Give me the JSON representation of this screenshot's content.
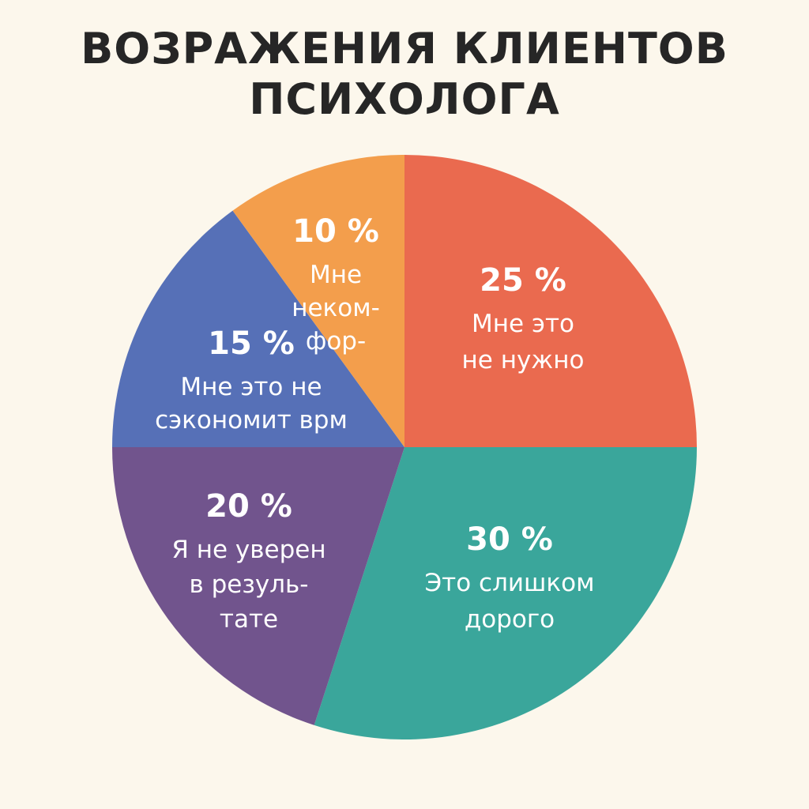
{
  "title_lines": [
    "ВОЗРАЖЕНИЯ КЛИЕНТОВ",
    "ПСИХОЛОГА"
  ],
  "chart_data": {
    "type": "pie",
    "title": "ВОЗРАЖЕНИЯ КЛИЕНТОВ ПСИХОЛОГА",
    "slices": [
      {
        "key": "s25",
        "value": 25,
        "pct_label": "25 %",
        "label_lines": [
          "Мне это",
          "не нужно"
        ],
        "color": "#ea6a4f"
      },
      {
        "key": "s30",
        "value": 30,
        "pct_label": "30 %",
        "label_lines": [
          "Это слишком",
          "дорого"
        ],
        "color": "#3aa69b"
      },
      {
        "key": "s20",
        "value": 20,
        "pct_label": "20 %",
        "label_lines": [
          "Я не уверен",
          "в резуль-",
          "тате"
        ],
        "color": "#71548d"
      },
      {
        "key": "s15",
        "value": 15,
        "pct_label": "15 %",
        "label_lines": [
          "Мне это не",
          "сэкономит врм"
        ],
        "color": "#5670b7"
      },
      {
        "key": "s10",
        "value": 10,
        "pct_label": "10 %",
        "label_lines": [
          "Мне",
          "неком-",
          "фор-"
        ],
        "color": "#f39e4c"
      }
    ]
  }
}
